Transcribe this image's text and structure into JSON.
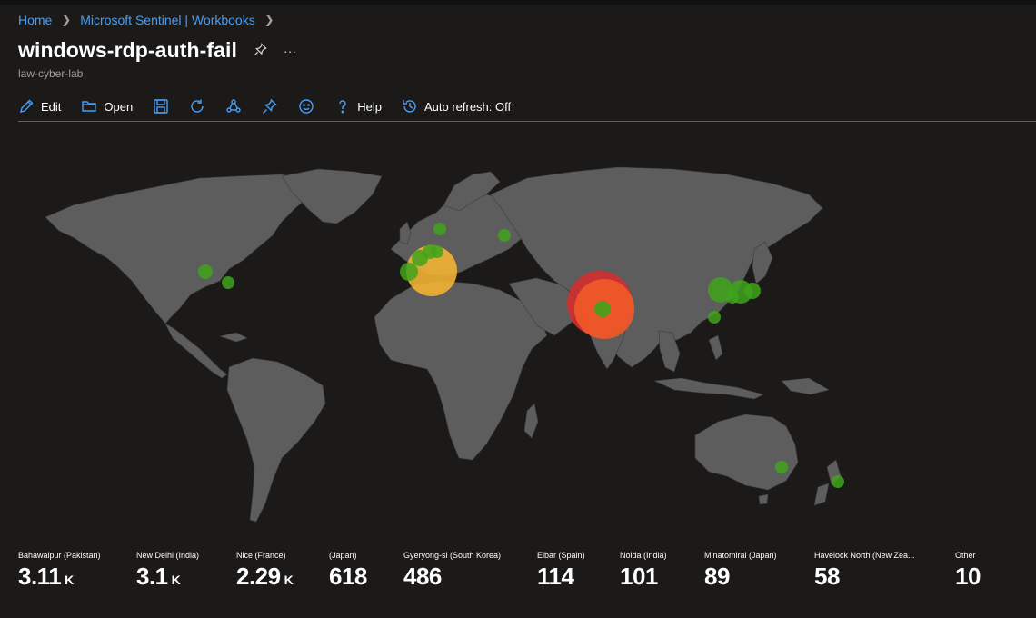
{
  "breadcrumb": {
    "home": "Home",
    "workbooks": "Microsoft Sentinel | Workbooks"
  },
  "header": {
    "title": "windows-rdp-auth-fail",
    "pin_icon": "pin-icon",
    "more_label": "···",
    "subtitle": "law-cyber-lab"
  },
  "toolbar": {
    "edit_label": "Edit",
    "open_label": "Open",
    "help_label": "Help",
    "auto_refresh_label": "Auto refresh: Off",
    "icons": [
      "edit-icon",
      "open-folder-icon",
      "save-icon",
      "refresh-icon",
      "share-icon",
      "pin-icon",
      "feedback-icon",
      "help-icon",
      "history-icon"
    ]
  },
  "colors": {
    "accent": "#479ef5",
    "land": "#5d5d5d",
    "green": "#3fa31b",
    "orange": "#f2b233",
    "red": "#d32f2f",
    "redorange": "#f05a28"
  },
  "legend": [
    {
      "label": "Bahawalpur (Pakistan)",
      "value": "3.11",
      "unit": "K"
    },
    {
      "label": "New Delhi (India)",
      "value": "3.1",
      "unit": "K"
    },
    {
      "label": "Nice (France)",
      "value": "2.29",
      "unit": "K"
    },
    {
      "label": "(Japan)",
      "value": "618",
      "unit": ""
    },
    {
      "label": "Gyeryong-si (South Korea)",
      "value": "486",
      "unit": ""
    },
    {
      "label": "Eibar (Spain)",
      "value": "114",
      "unit": ""
    },
    {
      "label": "Noida (India)",
      "value": "101",
      "unit": ""
    },
    {
      "label": "Minatomirai (Japan)",
      "value": "89",
      "unit": ""
    },
    {
      "label": "Havelock North (New Zea...",
      "value": "58",
      "unit": ""
    },
    {
      "label": "Other",
      "value": "10",
      "unit": ""
    }
  ]
}
